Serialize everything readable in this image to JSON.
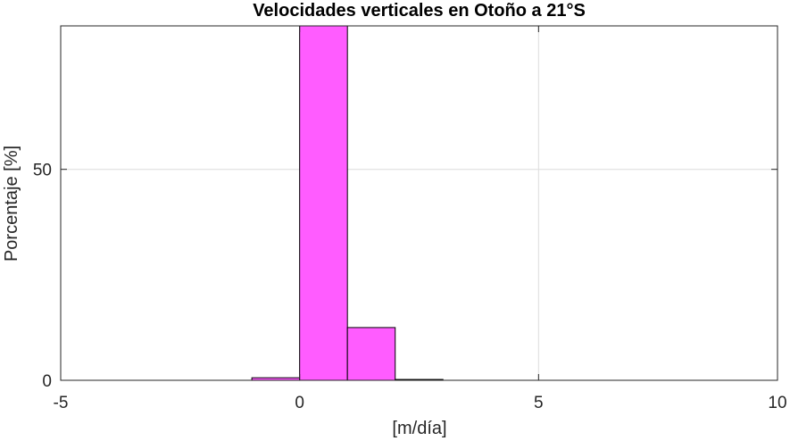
{
  "chart_data": {
    "type": "bar",
    "title": "Velocidades verticales en Otoño a 21°S",
    "xlabel": "[m/día]",
    "ylabel": "Porcentaje [%]",
    "xlim": [
      -5,
      10
    ],
    "ylim": [
      0,
      84
    ],
    "x_ticks": [
      -5,
      0,
      5,
      10
    ],
    "x_tick_labels": [
      "-5",
      "0",
      "5",
      "10"
    ],
    "y_ticks": [
      0,
      50
    ],
    "y_tick_labels": [
      "0",
      "50"
    ],
    "grid": true,
    "bin_width": 1,
    "bins": [
      {
        "x0": -1,
        "x1": 0,
        "value": 0.6
      },
      {
        "x0": 0,
        "x1": 1,
        "value": 84
      },
      {
        "x0": 1,
        "x1": 2,
        "value": 12.5
      },
      {
        "x0": 2,
        "x1": 3,
        "value": 0.2
      }
    ],
    "bar_color": "#ff5cff",
    "bar_edge_color": "#000000"
  }
}
